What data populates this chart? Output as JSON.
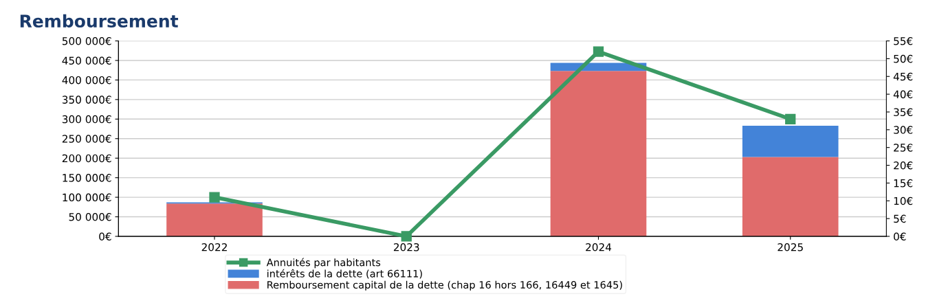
{
  "chart_data": {
    "type": "bar",
    "title": "Remboursement",
    "categories": [
      "2022",
      "2023",
      "2024",
      "2025"
    ],
    "stacked": true,
    "series": [
      {
        "name": "Remboursement capital de la dette (chap 16 hors 166, 16449 et 1645)",
        "color": "#e06b6b",
        "values": [
          84000,
          0,
          423000,
          203000
        ]
      },
      {
        "name": "intérêts de la dette (art 66111)",
        "color": "#4383d8",
        "values": [
          3000,
          0,
          21000,
          80000
        ]
      },
      {
        "name": "Annuités par habitants",
        "type": "line",
        "axis": "y2",
        "color": "#3a9a64",
        "values": [
          11,
          0,
          52,
          33
        ]
      }
    ],
    "ylim": [
      0,
      500000
    ],
    "yticks": [
      {
        "value": 0,
        "label": "0€"
      },
      {
        "value": 50000,
        "label": "50 000€"
      },
      {
        "value": 100000,
        "label": "100 000€"
      },
      {
        "value": 150000,
        "label": "150 000€"
      },
      {
        "value": 200000,
        "label": "200 000€"
      },
      {
        "value": 250000,
        "label": "250 000€"
      },
      {
        "value": 300000,
        "label": "300 000€"
      },
      {
        "value": 350000,
        "label": "350 000€"
      },
      {
        "value": 400000,
        "label": "400 000€"
      },
      {
        "value": 450000,
        "label": "450 000€"
      },
      {
        "value": 500000,
        "label": "500 000€"
      }
    ],
    "y2lim": [
      0,
      55
    ],
    "y2ticks": [
      {
        "value": 0,
        "label": "0€"
      },
      {
        "value": 5,
        "label": "5€"
      },
      {
        "value": 10,
        "label": "10€"
      },
      {
        "value": 15,
        "label": "15€"
      },
      {
        "value": 20,
        "label": "20€"
      },
      {
        "value": 25,
        "label": "25€"
      },
      {
        "value": 30,
        "label": "30€"
      },
      {
        "value": 35,
        "label": "35€"
      },
      {
        "value": 40,
        "label": "40€"
      },
      {
        "value": 45,
        "label": "45€"
      },
      {
        "value": 50,
        "label": "50€"
      },
      {
        "value": 55,
        "label": "55€"
      }
    ],
    "grid": "y",
    "legend": "bottom",
    "marker": "square"
  }
}
